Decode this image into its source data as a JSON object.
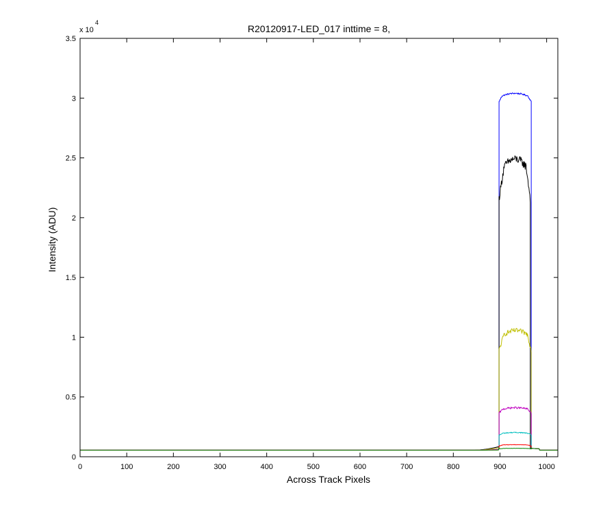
{
  "chart_data": {
    "type": "line",
    "title": "R20120917-LED_017 inttime = 8,",
    "xlabel": "Across Track Pixels",
    "ylabel": "Intensity (ADU)",
    "xlim": [
      0,
      1024
    ],
    "ylim": [
      0,
      35000
    ],
    "x_ticks": [
      "0",
      "100",
      "200",
      "300",
      "400",
      "500",
      "600",
      "700",
      "800",
      "900",
      "1000"
    ],
    "y_ticks": [
      "0",
      "0.5",
      "1",
      "1.5",
      "2",
      "2.5",
      "3",
      "3.5"
    ],
    "y_exponent_base": "x 10",
    "y_exponent_power": "4",
    "grid": false,
    "baseline": 550,
    "series": [
      {
        "color": "#0000ff",
        "plateau": 30300,
        "tilt": 200,
        "noise": 60,
        "edge_drop": 600,
        "x_start": 898,
        "x_end": 967,
        "knee_left": 906,
        "knee_right": 958
      },
      {
        "color": "#000000",
        "plateau": 24600,
        "tilt": 600,
        "noise": 350,
        "edge_drop": 3000,
        "x_start": 898,
        "x_end": 965,
        "knee_left": 910,
        "knee_right": 955
      },
      {
        "color": "#bfbf00",
        "plateau": 10400,
        "tilt": 300,
        "noise": 200,
        "edge_drop": 1500,
        "x_start": 898,
        "x_end": 967,
        "knee_left": 910,
        "knee_right": 958
      },
      {
        "color": "#bf00bf",
        "plateau": 4050,
        "tilt": 100,
        "noise": 80,
        "edge_drop": 400,
        "x_start": 898,
        "x_end": 967,
        "knee_left": 908,
        "knee_right": 958
      },
      {
        "color": "#00bfbf",
        "plateau": 2000,
        "tilt": 60,
        "noise": 40,
        "edge_drop": 200,
        "x_start": 898,
        "x_end": 967,
        "knee_left": 908,
        "knee_right": 958
      },
      {
        "color": "#ff0000",
        "plateau": 1000,
        "tilt": 20,
        "noise": 20,
        "edge_drop": 100,
        "x_start": 898,
        "x_end": 967,
        "knee_left": 908,
        "knee_right": 958
      },
      {
        "color": "#008000",
        "plateau": 700,
        "tilt": 10,
        "noise": 10,
        "edge_drop": 50,
        "x_start": 898,
        "x_end": 967,
        "knee_left": 908,
        "knee_right": 958
      }
    ]
  }
}
